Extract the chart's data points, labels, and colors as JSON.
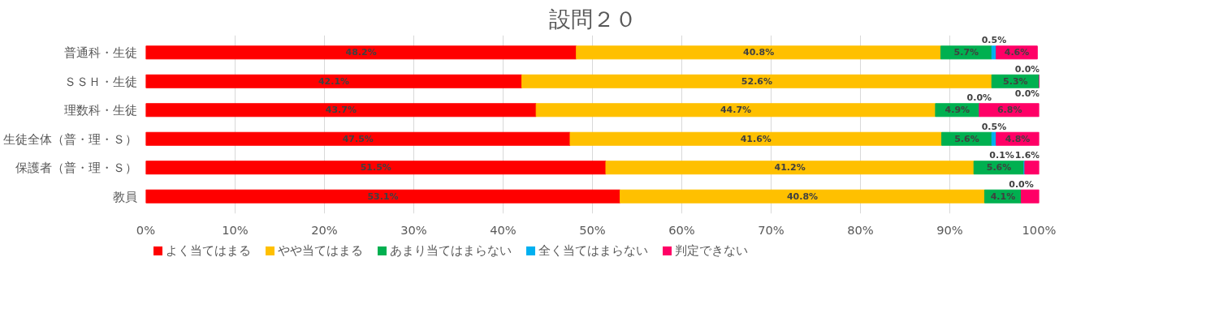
{
  "chart_data": {
    "type": "bar",
    "orientation": "horizontal",
    "stacked": true,
    "title": "設問２０",
    "categories": [
      "普通科・生徒",
      "ＳＳＨ・生徒",
      "理数科・生徒",
      "生徒全体（普・理・Ｓ）",
      "保護者（普・理・Ｓ）",
      "教員"
    ],
    "series": [
      {
        "name": "よく当てはまる",
        "color": "#ff0000",
        "values": [
          48.2,
          42.1,
          43.7,
          47.5,
          51.5,
          53.1
        ],
        "value_labels": [
          "48.2%",
          "42.1%",
          "43.7%",
          "47.5%",
          "51.5%",
          "53.1%"
        ]
      },
      {
        "name": "やや当てはまる",
        "color": "#ffc000",
        "values": [
          40.8,
          52.6,
          44.7,
          41.6,
          41.2,
          40.8
        ],
        "value_labels": [
          "40.8%",
          "52.6%",
          "44.7%",
          "41.6%",
          "41.2%",
          "40.8%"
        ]
      },
      {
        "name": "あまり当てはまらない",
        "color": "#00b050",
        "values": [
          5.7,
          5.3,
          4.9,
          5.6,
          5.6,
          4.1
        ],
        "value_labels": [
          "5.7%",
          "5.3%",
          "4.9%",
          "5.6%",
          "5.6%",
          "4.1%"
        ]
      },
      {
        "name": "全く当てはまらない",
        "color": "#00b0f0",
        "values": [
          0.5,
          0.0,
          0.0,
          0.5,
          0.1,
          0.0
        ],
        "value_labels": [
          "0.5%",
          "0.0%",
          "0.0%",
          "0.5%",
          "0.1%",
          "0.0%"
        ]
      },
      {
        "name": "判定できない",
        "color": "#ff0066",
        "values": [
          4.6,
          0.0,
          6.8,
          4.8,
          1.6,
          2.0
        ],
        "value_labels": [
          "4.6%",
          "0.0%",
          "6.8%",
          "4.8%",
          "1.6%",
          null
        ]
      }
    ],
    "xlim": [
      0,
      100
    ],
    "xticks": [
      {
        "value": 0,
        "label": "0%"
      },
      {
        "value": 10,
        "label": "10%"
      },
      {
        "value": 20,
        "label": "20%"
      },
      {
        "value": 30,
        "label": "30%"
      },
      {
        "value": 40,
        "label": "40%"
      },
      {
        "value": 50,
        "label": "50%"
      },
      {
        "value": 60,
        "label": "60%"
      },
      {
        "value": 70,
        "label": "70%"
      },
      {
        "value": 80,
        "label": "80%"
      },
      {
        "value": 90,
        "label": "90%"
      },
      {
        "value": 100,
        "label": "100%"
      }
    ],
    "grid": "x",
    "legend": "bottom"
  }
}
